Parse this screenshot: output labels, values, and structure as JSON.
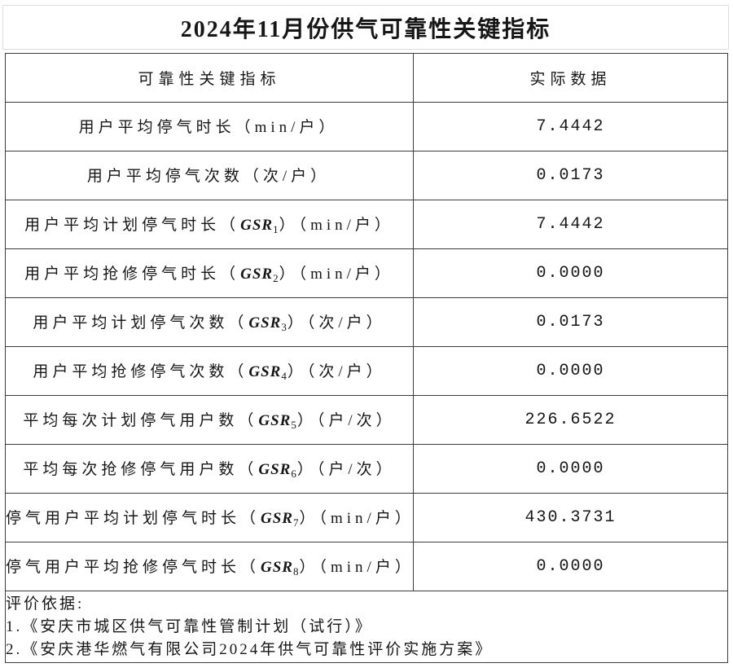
{
  "title": "2024年11月份供气可靠性关键指标",
  "table": {
    "headers": {
      "indicator": "可靠性关键指标",
      "value": "实际数据"
    },
    "rows": [
      {
        "label_pre": "用户平均停气时长（min/户）",
        "gsr": "",
        "gsr_sub": "",
        "label_post": "",
        "value": "7.4442"
      },
      {
        "label_pre": "用户平均停气次数（次/户）",
        "gsr": "",
        "gsr_sub": "",
        "label_post": "",
        "value": "0.0173"
      },
      {
        "label_pre": "用户平均计划停气时长（",
        "gsr": "GSR",
        "gsr_sub": "1",
        "label_post": "）（min/户）",
        "value": "7.4442"
      },
      {
        "label_pre": "用户平均抢修停气时长（",
        "gsr": "GSR",
        "gsr_sub": "2",
        "label_post": "）（min/户）",
        "value": "0.0000"
      },
      {
        "label_pre": "用户平均计划停气次数（",
        "gsr": "GSR",
        "gsr_sub": "3",
        "label_post": "）（次/户）",
        "value": "0.0173"
      },
      {
        "label_pre": "用户平均抢修停气次数（",
        "gsr": "GSR",
        "gsr_sub": "4",
        "label_post": "）（次/户）",
        "value": "0.0000"
      },
      {
        "label_pre": "平均每次计划停气用户数（",
        "gsr": "GSR",
        "gsr_sub": "5",
        "label_post": "）（户/次）",
        "value": "226.6522"
      },
      {
        "label_pre": "平均每次抢修停气用户数（",
        "gsr": "GSR",
        "gsr_sub": "6",
        "label_post": "）（户/次）",
        "value": "0.0000"
      },
      {
        "label_pre": "停气用户平均计划停气时长（",
        "gsr": "GSR",
        "gsr_sub": "7",
        "label_post": "）（min/户）",
        "value": "430.3731"
      },
      {
        "label_pre": "停气用户平均抢修停气时长（",
        "gsr": "GSR",
        "gsr_sub": "8",
        "label_post": "）（min/户）",
        "value": "0.0000"
      }
    ],
    "footer": {
      "heading": "评价依据:",
      "items": [
        "1.《安庆市城区供气可靠性管制计划（试行）》",
        "2.《安庆港华燃气有限公司2024年供气可靠性评价实施方案》"
      ]
    }
  },
  "colors": {
    "background": "#ffffff",
    "text": "#161616",
    "table_border": "#3d3d3d",
    "title_box_border": "#dedede"
  }
}
